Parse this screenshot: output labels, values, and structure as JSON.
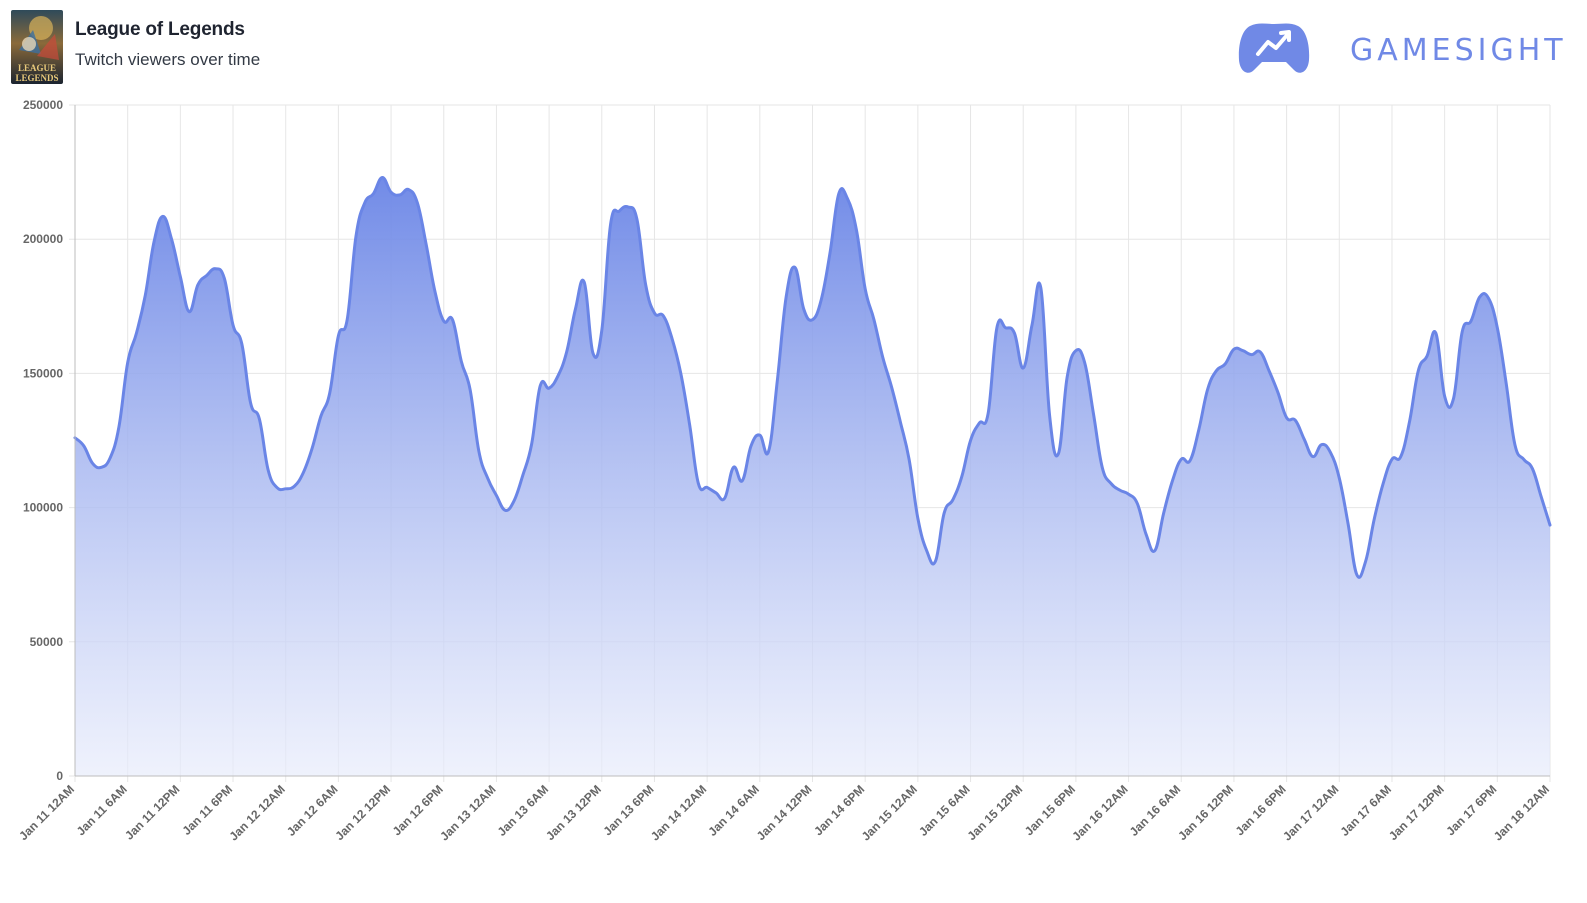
{
  "header": {
    "game_title": "League of Legends",
    "subtitle": "Twitch viewers over time",
    "cover_text": [
      "LEAGUE",
      "LEGENDS"
    ],
    "brand_name": "GAMESIGHT",
    "brand_logo_icon": "gamepad-trend-icon",
    "brand_color": "#7089e6"
  },
  "chart_data": {
    "type": "area",
    "title": "",
    "xlabel": "",
    "ylabel": "",
    "ylim": [
      0,
      250000
    ],
    "yticks": [
      0,
      50000,
      100000,
      150000,
      200000,
      250000
    ],
    "ytick_labels": [
      "0",
      "50000",
      "100000",
      "150000",
      "200000",
      "250000"
    ],
    "xtick_labels": [
      "Jan 11 12AM",
      "Jan 11 6AM",
      "Jan 11 12PM",
      "Jan 11 6PM",
      "Jan 12 12AM",
      "Jan 12 6AM",
      "Jan 12 12PM",
      "Jan 12 6PM",
      "Jan 13 12AM",
      "Jan 13 6AM",
      "Jan 13 12PM",
      "Jan 13 6PM",
      "Jan 14 12AM",
      "Jan 14 6AM",
      "Jan 14 12PM",
      "Jan 14 6PM",
      "Jan 15 12AM",
      "Jan 15 6AM",
      "Jan 15 12PM",
      "Jan 15 6PM",
      "Jan 16 12AM",
      "Jan 16 6AM",
      "Jan 16 12PM",
      "Jan 16 6PM",
      "Jan 17 12AM",
      "Jan 17 6AM",
      "Jan 17 12PM",
      "Jan 17 6PM",
      "Jan 18 12AM"
    ],
    "grid": true,
    "line_color": "#6a85e6",
    "fill_color_top": "#6a85e6",
    "fill_color_bottom": "#e8ecfb",
    "series": [
      {
        "values": [
          126000,
          123000,
          116500,
          115000,
          118500,
          130000,
          154000,
          165000,
          179000,
          199000,
          208500,
          200000,
          186000,
          173000,
          183000,
          186500,
          189000,
          185500,
          168000,
          161000,
          139000,
          133000,
          114000,
          107500,
          107000,
          108000,
          113000,
          122000,
          134000,
          142500,
          164000,
          170000,
          201000,
          213500,
          217000,
          223000,
          217500,
          216500,
          218500,
          213500,
          198000,
          180500,
          169500,
          170000,
          154500,
          144000,
          121000,
          111000,
          104500,
          99000,
          102500,
          112000,
          123500,
          145500,
          144500,
          149000,
          158000,
          174000,
          184000,
          157500,
          166000,
          205500,
          210500,
          212000,
          207500,
          183000,
          172500,
          171500,
          163000,
          150000,
          131000,
          109000,
          107500,
          105500,
          103500,
          115000,
          110000,
          123000,
          127000,
          121000,
          147500,
          178500,
          189500,
          174000,
          170000,
          177500,
          195000,
          217000,
          215000,
          203500,
          181500,
          170000,
          156000,
          145000,
          132000,
          118000,
          96000,
          84000,
          80000,
          98000,
          103000,
          111500,
          125000,
          131500,
          135000,
          167000,
          167000,
          165000,
          152000,
          168000,
          182000,
          134500,
          120000,
          148500,
          158500,
          154000,
          135000,
          115000,
          109000,
          106500,
          105000,
          101500,
          90000,
          84000,
          98000,
          110000,
          118000,
          117500,
          129000,
          144000,
          151000,
          153500,
          159000,
          158500,
          157000,
          158000,
          151000,
          143000,
          133500,
          132500,
          125500,
          119000,
          123500,
          120500,
          111000,
          94000,
          75000,
          80000,
          96000,
          109000,
          118000,
          119000,
          132000,
          151000,
          156500,
          165000,
          141500,
          140500,
          165500,
          169500,
          178500,
          178000,
          167000,
          146500,
          123500,
          118000,
          114500,
          104000,
          93500
        ]
      }
    ]
  }
}
